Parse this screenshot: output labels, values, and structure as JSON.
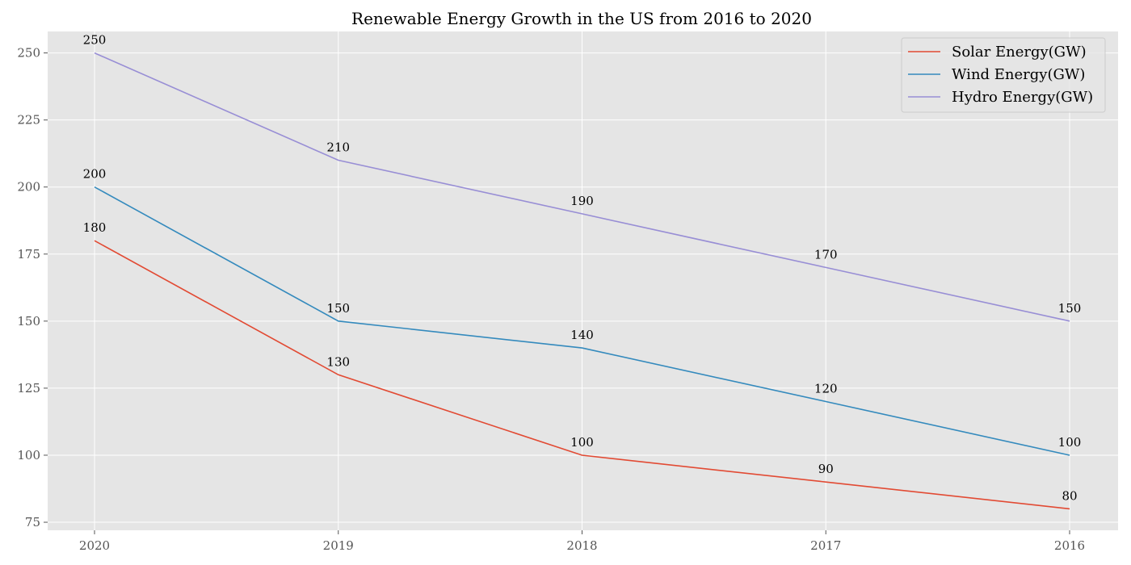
{
  "chart_data": {
    "type": "line",
    "title": "Renewable Energy Growth in the US from 2016 to 2020",
    "xlabel": "",
    "ylabel": "",
    "categories": [
      "2020",
      "2019",
      "2018",
      "2017",
      "2016"
    ],
    "series": [
      {
        "name": "Solar Energy(GW)",
        "color": "#E24A33",
        "values": [
          180,
          130,
          100,
          90,
          80
        ]
      },
      {
        "name": "Wind Energy(GW)",
        "color": "#348ABD",
        "values": [
          200,
          150,
          140,
          120,
          100
        ]
      },
      {
        "name": "Hydro Energy(GW)",
        "color": "#988ED5",
        "values": [
          250,
          210,
          190,
          170,
          150
        ]
      }
    ],
    "ylim": [
      72,
      258
    ],
    "yticks": [
      75,
      100,
      125,
      150,
      175,
      200,
      225,
      250
    ],
    "grid": true,
    "legend_position": "top-right",
    "background": "#E5E5E5",
    "grid_color": "#FFFFFF"
  }
}
